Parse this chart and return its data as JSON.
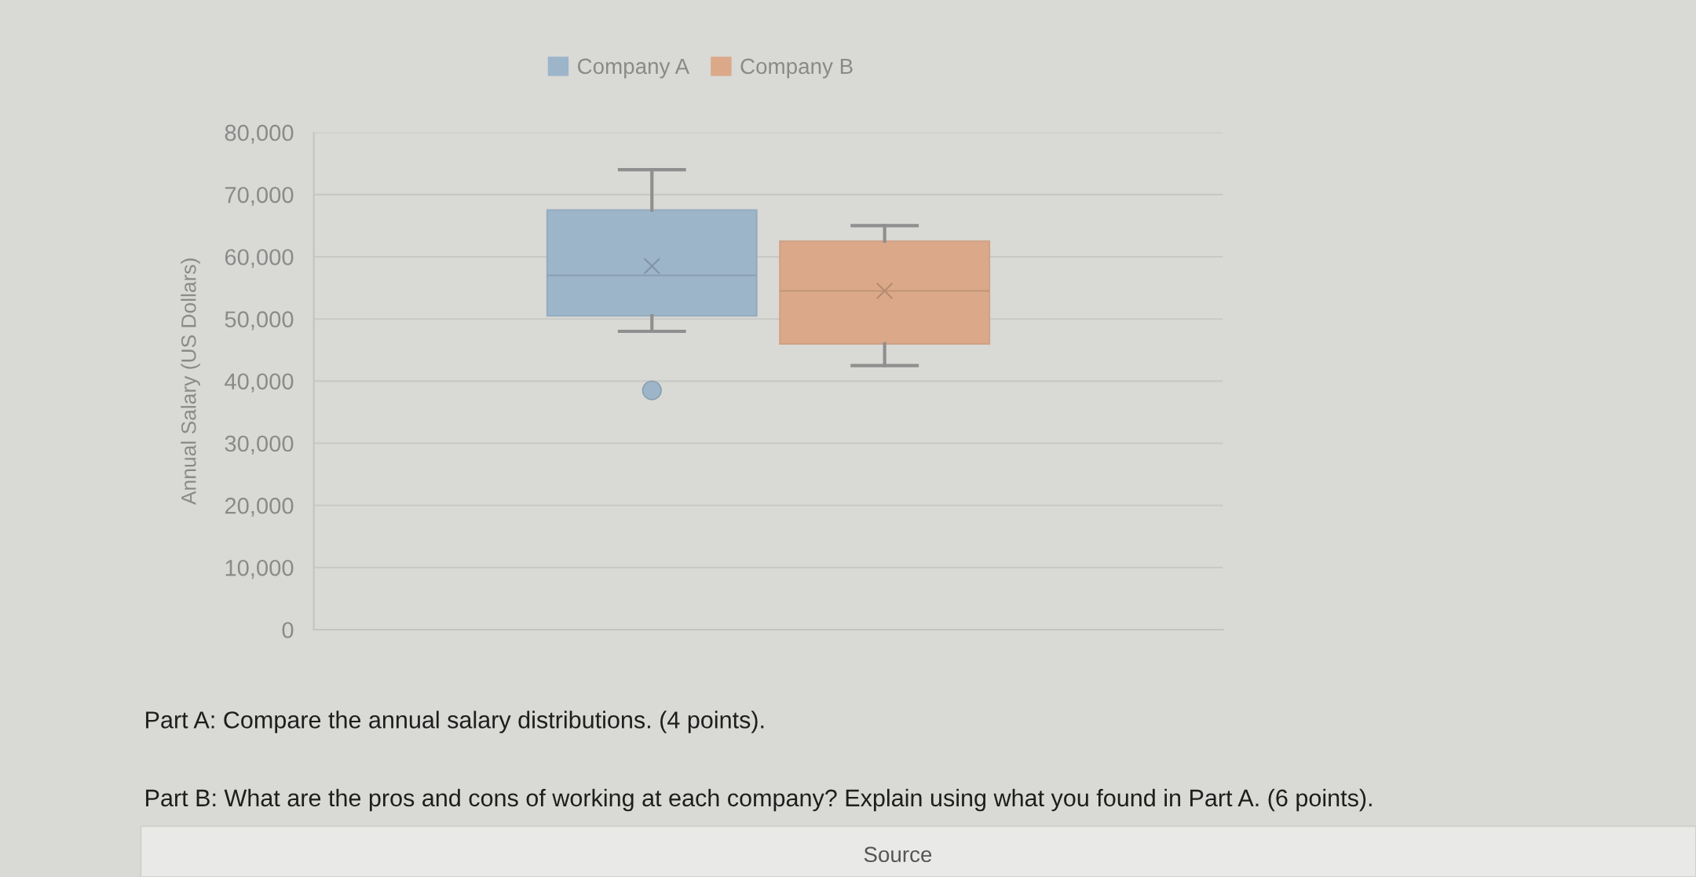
{
  "chart_data": {
    "type": "box",
    "categories": [
      null
    ],
    "series": [
      {
        "name": "Company A",
        "color": "#9db5c9",
        "boxes": [
          {
            "low": 48000,
            "q1": 50500,
            "median": 57000,
            "q3": 67500,
            "high": 74000,
            "mean": 58500,
            "outliers": [
              38500
            ]
          }
        ]
      },
      {
        "name": "Company B",
        "color": "#dba98a",
        "boxes": [
          {
            "low": 42500,
            "q1": 46000,
            "median": 54500,
            "q3": 62500,
            "high": 65000,
            "mean": 54500
          }
        ]
      }
    ],
    "ylabel": "Annual Salary (US Dollars)",
    "ylim": [
      0,
      80000
    ],
    "yticks": [
      0,
      {
        "value": 10000,
        "label": "10,000"
      },
      {
        "value": 20000,
        "label": "20,000"
      },
      {
        "value": 30000,
        "label": "30,000"
      },
      {
        "value": 40000,
        "label": "40,000"
      },
      {
        "value": 50000,
        "label": "50,000"
      },
      {
        "value": 60000,
        "label": "60,000"
      },
      {
        "value": 70000,
        "label": "70,000"
      },
      {
        "value": 80000,
        "label": "80,000"
      }
    ],
    "grid": "y",
    "legend": "top",
    "annotations": [
      "Part A: Compare the annual salary distributions. (4 points).",
      "Part B: What are the pros and cons of working at each company? Explain using what you found in Part A. (6 points).",
      "Source"
    ]
  }
}
